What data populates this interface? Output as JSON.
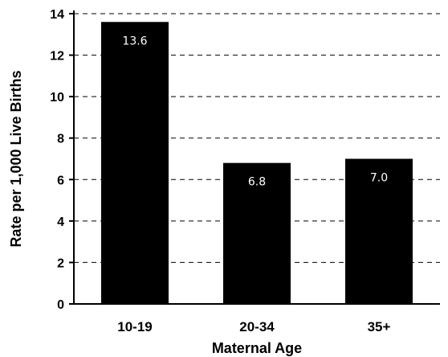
{
  "chart_data": {
    "type": "bar",
    "categories": [
      "10-19",
      "20-34",
      "35+"
    ],
    "values": [
      13.6,
      6.8,
      7.0
    ],
    "data_labels": [
      "13.6",
      "6.8",
      "7.0"
    ],
    "title": "",
    "xlabel": "Maternal Age",
    "ylabel": "Rate per 1,000 Live Births",
    "ylim": [
      0,
      14
    ],
    "yticks": [
      0,
      2,
      4,
      6,
      8,
      10,
      12,
      14
    ],
    "grid": "horizontal-dashed",
    "bar_color": "#000000",
    "label_color": "#ffffff"
  }
}
